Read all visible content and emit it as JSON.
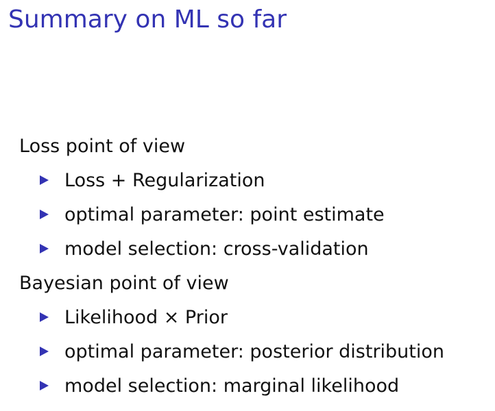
{
  "slide": {
    "title": "Summary on ML so far",
    "accent_color": "#3333b3",
    "sections": [
      {
        "heading": "Loss point of view",
        "bullets": [
          "Loss + Regularization",
          "optimal parameter: point estimate",
          "model selection: cross-validation"
        ]
      },
      {
        "heading": "Bayesian point of view",
        "bullets": [
          "Likelihood × Prior",
          "optimal parameter: posterior distribution",
          "model selection: marginal likelihood"
        ]
      }
    ]
  }
}
